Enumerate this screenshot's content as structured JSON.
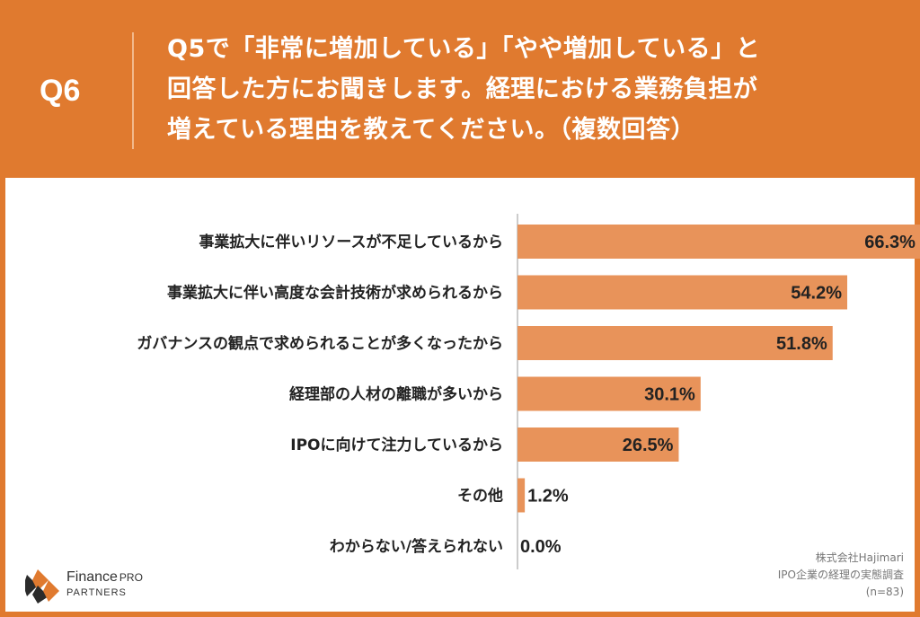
{
  "header": {
    "question_number": "Q6",
    "question_lines": [
      "Q5で「非常に増加している」「やや増加している」と",
      "回答した方にお聞きします。経理における業務負担が",
      "増えている理由を教えてください。（複数回答）"
    ]
  },
  "chart_data": {
    "type": "bar",
    "orientation": "horizontal",
    "categories": [
      "事業拡大に伴いリソースが不足しているから",
      "事業拡大に伴い高度な会計技術が求められるから",
      "ガバナンスの観点で求められることが多くなったから",
      "経理部の人材の離職が多いから",
      "IPOに向けて注力しているから",
      "その他",
      "わからない/答えられない"
    ],
    "values": [
      66.3,
      54.2,
      51.8,
      30.1,
      26.5,
      1.2,
      0.0
    ],
    "value_labels": [
      "66.3%",
      "54.2%",
      "51.8%",
      "30.1%",
      "26.5%",
      "1.2%",
      "0.0%"
    ],
    "xlim": [
      0,
      70
    ],
    "bar_color": "#e8935a",
    "grid": false
  },
  "logo": {
    "name_main": "Finance",
    "name_pro": "PRO",
    "name_sub": "PARTNERS"
  },
  "source": {
    "lines": [
      "株式会社Hajimari",
      "IPO企業の経理の実態調査",
      "(n=83)"
    ]
  },
  "colors": {
    "accent": "#e07a2f",
    "bar": "#e8935a",
    "logo_dark": "#2b2b2b",
    "logo_orange": "#e07a2f"
  }
}
